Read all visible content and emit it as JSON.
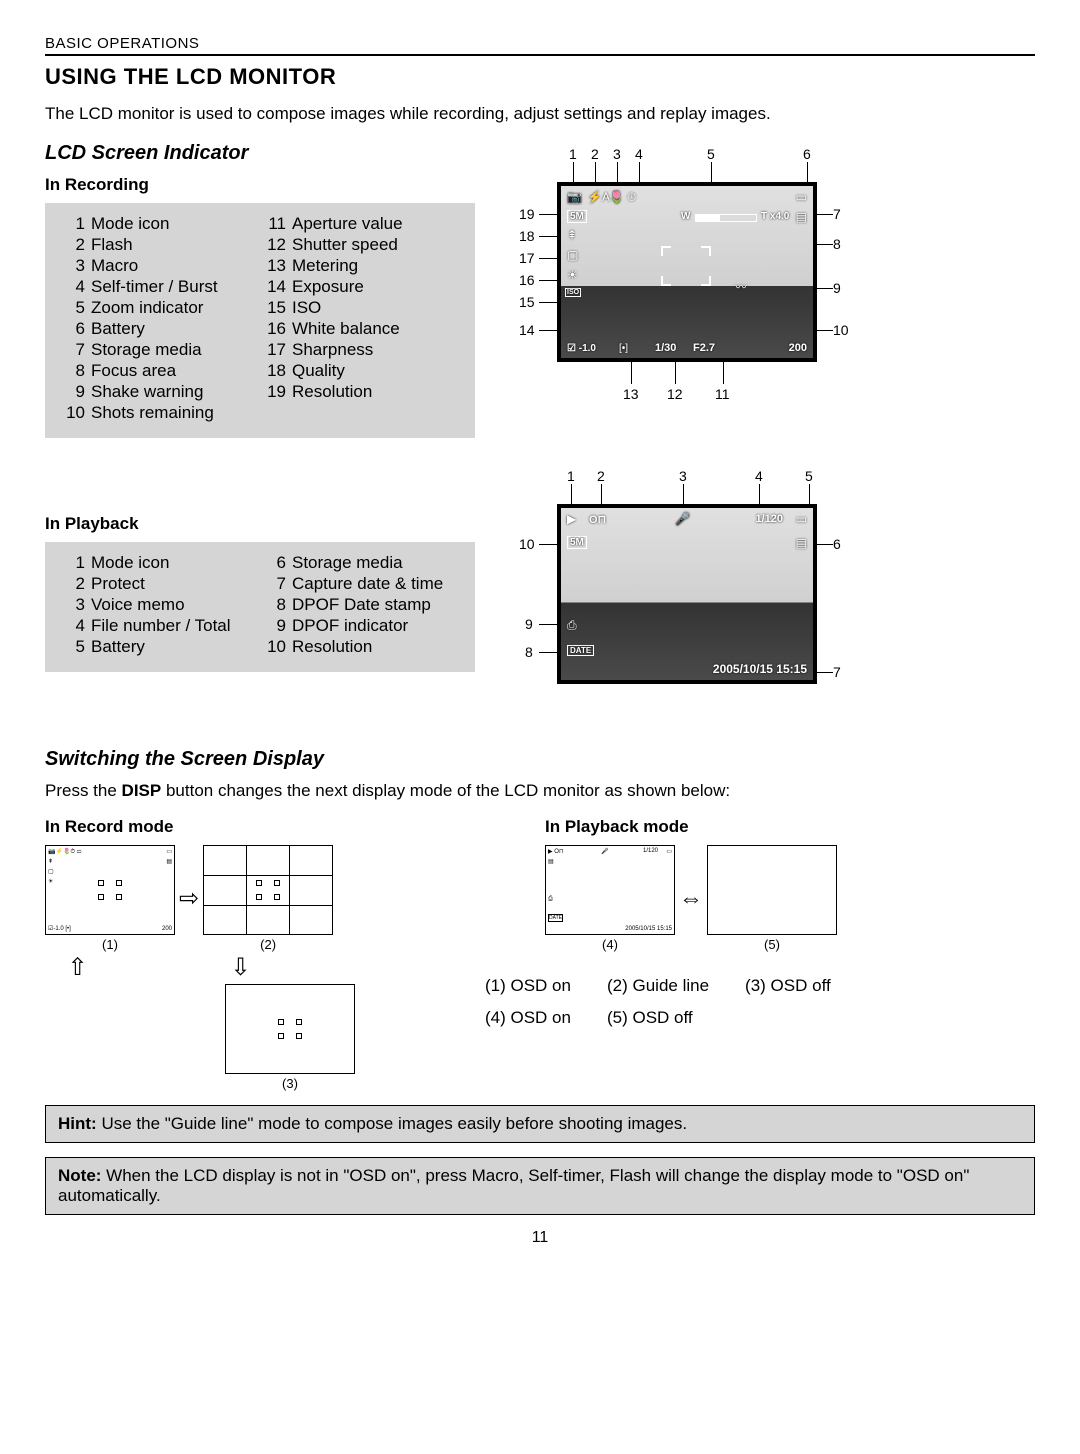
{
  "header": "BASIC OPERATIONS",
  "title": "USING THE LCD MONITOR",
  "intro": "The LCD monitor is used to compose images while recording, adjust settings and replay images.",
  "indicator_heading": "LCD Screen Indicator",
  "recording": {
    "heading": "In Recording",
    "items": [
      {
        "n": "1",
        "label": "Mode icon"
      },
      {
        "n": "2",
        "label": "Flash"
      },
      {
        "n": "3",
        "label": "Macro"
      },
      {
        "n": "4",
        "label": "Self-timer / Burst"
      },
      {
        "n": "5",
        "label": "Zoom indicator"
      },
      {
        "n": "6",
        "label": "Battery"
      },
      {
        "n": "7",
        "label": "Storage media"
      },
      {
        "n": "8",
        "label": "Focus area"
      },
      {
        "n": "9",
        "label": "Shake warning"
      },
      {
        "n": "10",
        "label": "Shots remaining"
      }
    ],
    "items2": [
      {
        "n": "11",
        "label": "Aperture value"
      },
      {
        "n": "12",
        "label": "Shutter speed"
      },
      {
        "n": "13",
        "label": "Metering"
      },
      {
        "n": "14",
        "label": "Exposure"
      },
      {
        "n": "15",
        "label": "ISO"
      },
      {
        "n": "16",
        "label": "White balance"
      },
      {
        "n": "17",
        "label": "Sharpness"
      },
      {
        "n": "18",
        "label": "Quality"
      },
      {
        "n": "19",
        "label": "Resolution"
      }
    ],
    "osd": {
      "resolution": "5M",
      "zoom_label": "T x4.0",
      "exposure": "-1.0",
      "shutter": "1/30",
      "aperture": "F2.7",
      "shots": "200",
      "zoom_w": "W",
      "iso": "ISO"
    }
  },
  "playback": {
    "heading": "In Playback",
    "items": [
      {
        "n": "1",
        "label": "Mode icon"
      },
      {
        "n": "2",
        "label": "Protect"
      },
      {
        "n": "3",
        "label": "Voice memo"
      },
      {
        "n": "4",
        "label": "File number / Total"
      },
      {
        "n": "5",
        "label": "Battery"
      }
    ],
    "items2": [
      {
        "n": "6",
        "label": "Storage media"
      },
      {
        "n": "7",
        "label": "Capture date & time"
      },
      {
        "n": "8",
        "label": "DPOF Date stamp"
      },
      {
        "n": "9",
        "label": "DPOF indicator"
      },
      {
        "n": "10",
        "label": "Resolution"
      }
    ],
    "osd": {
      "file": "1/120",
      "resolution": "5M",
      "datetime": "2005/10/15 15:15",
      "date_stamp": "DATE",
      "protect": "O⊓"
    }
  },
  "switching": {
    "heading": "Switching the Screen Display",
    "intro_pre": "Press the ",
    "intro_bold": "DISP",
    "intro_post": " button changes the next display mode of the LCD monitor as shown below:",
    "record_mode": "In Record mode",
    "playback_mode": "In Playback mode",
    "labels": {
      "l1": "(1)",
      "l2": "(2)",
      "l3": "(3)",
      "l4": "(4)",
      "l5": "(5)"
    },
    "legend": {
      "c1": "(1) OSD on",
      "c2": "(2) Guide line",
      "c3": "(3) OSD off",
      "c4": "(4) OSD on",
      "c5": "(5) OSD off"
    },
    "mini_osd": {
      "shots": "200",
      "file": "1/120",
      "datetime": "2005/10/15 15:15"
    }
  },
  "hint": {
    "label": "Hint:",
    "text": " Use the \"Guide line\" mode to compose images easily before shooting images."
  },
  "note": {
    "label": "Note:",
    "text": " When the LCD display is not in \"OSD on\", press Macro, Self-timer, Flash will change the display mode to \"OSD on\" automatically."
  },
  "page_number": "11"
}
